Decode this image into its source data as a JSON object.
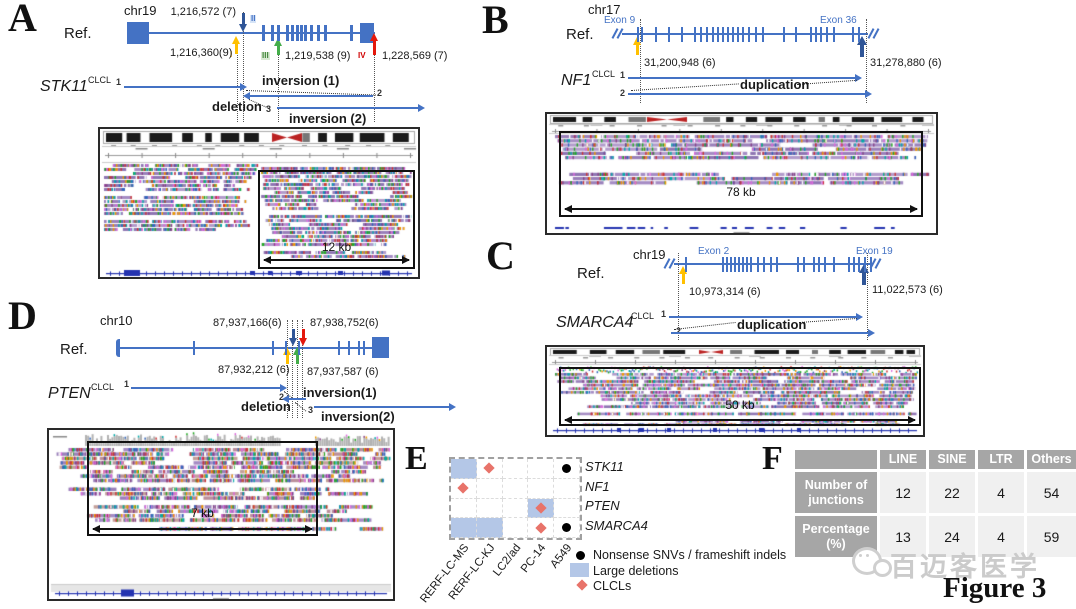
{
  "figure": {
    "caption": "Figure 3",
    "watermark": "百迈客医学"
  },
  "panelA": {
    "label": "A",
    "chrom": "chr19",
    "ref": "Ref.",
    "gene": "STK11",
    "gene_sup": "CLCL",
    "coord_top": "1,216,572 (7)",
    "coord_left": "1,216,360(9)",
    "coord_mid": "1,219,538 (9)",
    "coord_right": "1,228,569 (7)",
    "bp1": "I",
    "bp2": "II",
    "bp3": "III",
    "bp4": "IV",
    "seg1": "1",
    "seg2": "2",
    "seg3": "3",
    "inversion1": "inversion (1)",
    "deletion": "deletion",
    "inversion2": "inversion (2)",
    "igv_scale": "12 kb"
  },
  "panelB": {
    "label": "B",
    "chrom": "chr17",
    "ref": "Ref.",
    "gene": "NF1",
    "gene_sup": "CLCL",
    "exon_left": "Exon 9",
    "exon_right": "Exon 36",
    "coord_left": "31,200,948 (6)",
    "coord_right": "31,278,880 (6)",
    "seg1": "1",
    "seg2": "2",
    "duplication": "duplication",
    "igv_scale": "78 kb"
  },
  "panelC": {
    "label": "C",
    "chrom": "chr19",
    "ref": "Ref.",
    "gene": "SMARCA4",
    "gene_sup": "CLCL",
    "exon_left": "Exon 2",
    "exon_right": "Exon 19",
    "coord_left": "10,973,314 (6)",
    "coord_right": "11,022,573 (6)",
    "seg1": "1",
    "seg2": "2",
    "duplication": "duplication",
    "igv_scale": "50 kb"
  },
  "panelD": {
    "label": "D",
    "chrom": "chr10",
    "ref": "Ref.",
    "gene": "PTEN",
    "gene_sup": "CLCL",
    "coord_top_left": "87,937,166(6)",
    "coord_top_right": "87,938,752(6)",
    "coord_bot_left": "87,932,212 (6)",
    "coord_bot_right": "87,937,587 (6)",
    "seg1": "1",
    "seg2": "2",
    "seg3": "3",
    "inversion1": "inversion(1)",
    "deletion": "deletion",
    "inversion2": "inversion(2)",
    "igv_scale": "7 kb"
  },
  "panelE": {
    "label": "E",
    "chart_data": {
      "type": "heatmap",
      "rows": [
        "STK11",
        "NF1",
        "PTEN",
        "SMARCA4"
      ],
      "columns": [
        "RERF-LC-MS",
        "RERF-LC-KJ",
        "LC2/ad",
        "PC-14",
        "A549"
      ],
      "matrix": [
        [
          "large_deletion",
          "clcl",
          "",
          "",
          "nonsense_frameshift"
        ],
        [
          "clcl",
          "",
          "",
          "",
          ""
        ],
        [
          "",
          "",
          "",
          "large_deletion+clcl",
          ""
        ],
        [
          "large_deletion",
          "large_deletion",
          "",
          "clcl",
          "nonsense_frameshift"
        ]
      ]
    },
    "legend": [
      {
        "marker": "black-dot",
        "label": "Nonsense SNVs / frameshift indels"
      },
      {
        "marker": "blue-square",
        "label": "Large deletions"
      },
      {
        "marker": "red-diamond",
        "label": "CLCLs"
      }
    ]
  },
  "panelF": {
    "label": "F",
    "chart_data": {
      "type": "table",
      "columns": [
        "LINE",
        "SINE",
        "LTR",
        "Others"
      ],
      "rows": [
        {
          "label": "Number of junctions",
          "values": [
            "12",
            "22",
            "4",
            "54"
          ]
        },
        {
          "label": "Percentage (%)",
          "values": [
            "13",
            "24",
            "4",
            "59"
          ]
        }
      ]
    }
  },
  "colors": {
    "diagram_blue": "#4472c4",
    "arrow_orange": "#ffc000",
    "arrow_green": "#44ad4a",
    "arrow_red": "#e4180c",
    "arrow_dark_blue": "#2f5597",
    "matrix_fill": "#b4c7e7",
    "diamond_red": "#e8736a",
    "table_header_gray": "#a6a6a6",
    "table_cell_gray": "#f0f0f0"
  }
}
